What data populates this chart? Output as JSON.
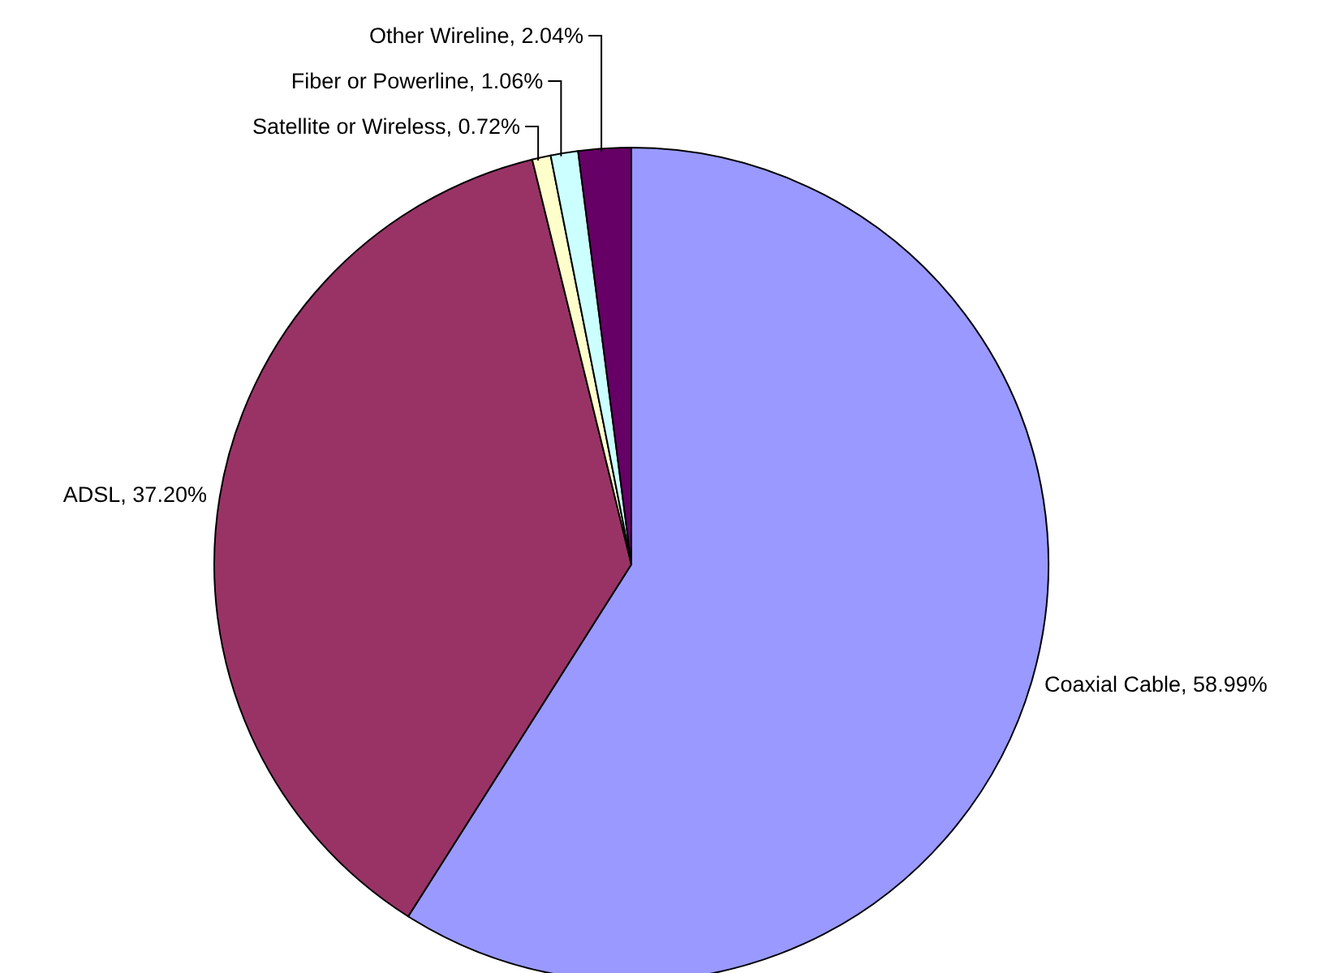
{
  "chart_data": {
    "type": "pie",
    "categories": [
      "Coaxial Cable",
      "ADSL",
      "Satellite or Wireless",
      "Fiber or Powerline",
      "Other Wireline"
    ],
    "values": [
      58.99,
      37.2,
      0.72,
      1.06,
      2.04
    ],
    "colors": [
      "#9999ff",
      "#993366",
      "#ffffcc",
      "#ccffff",
      "#660066"
    ],
    "value_labels": [
      "58.99%",
      "37.20%",
      "0.72%",
      "1.06%",
      "2.04%"
    ],
    "legend": false
  }
}
